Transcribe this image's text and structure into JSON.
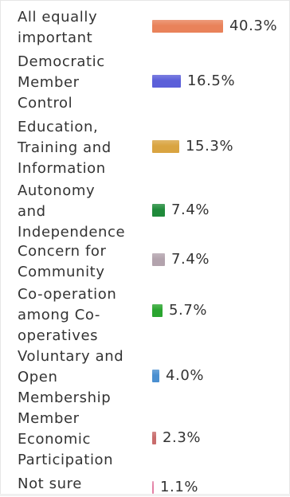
{
  "chart_data": {
    "type": "bar",
    "orientation": "horizontal",
    "categories": [
      "All equally\nimportant",
      "Democratic\nMember\nControl",
      "Education,\nTraining and\nInformation",
      "Autonomy\nand\nIndependence",
      "Concern for\nCommunity",
      "Co-operation\namong Co-\noperatives",
      "Voluntary and\nOpen\nMembership",
      "Member\nEconomic\nParticipation",
      "Not sure"
    ],
    "values": [
      40.3,
      16.5,
      15.3,
      7.4,
      7.4,
      5.7,
      4.0,
      2.3,
      1.1
    ],
    "value_labels": [
      "40.3%",
      "16.5%",
      "15.3%",
      "7.4%",
      "7.4%",
      "5.7%",
      "4.0%",
      "2.3%",
      "1.1%"
    ],
    "colors": [
      "#e9825a",
      "#5b5fd9",
      "#d9a441",
      "#1f8a3a",
      "#b3a3ad",
      "#2aa52f",
      "#4a8fd0",
      "#c86c6c",
      "#e37fa4"
    ],
    "xlim": [
      0,
      40.3
    ],
    "grid": false,
    "legend": "none"
  }
}
